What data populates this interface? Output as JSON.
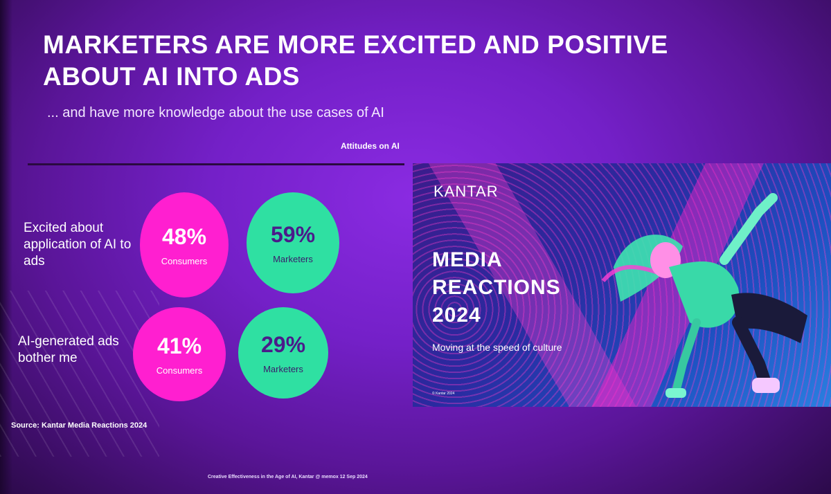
{
  "slide": {
    "title_line1": "MARKETERS ARE MORE EXCITED AND POSITIVE",
    "title_line2": "ABOUT AI INTO ADS",
    "subtitle": "... and have more knowledge about the use cases of AI",
    "section_label": "Attitudes on AI",
    "source": "Source: Kantar Media Reactions 2024",
    "footer": "Creative Effectiveness in the Age of AI, Kantar @ memox 12 Sep 2024"
  },
  "rows": [
    {
      "label": "Excited about application of AI to ads",
      "consumers": {
        "value": "48%",
        "group": "Consumers"
      },
      "marketers": {
        "value": "59%",
        "group": "Marketers"
      }
    },
    {
      "label": "AI-generated ads bother me",
      "consumers": {
        "value": "41%",
        "group": "Consumers"
      },
      "marketers": {
        "value": "29%",
        "group": "Marketers"
      }
    }
  ],
  "cover": {
    "brand": "KANTAR",
    "title_line1": "MEDIA",
    "title_line2": "REACTIONS",
    "title_line3": "2024",
    "tagline": "Moving at the speed of culture",
    "copyright": "© Kantar 2024"
  },
  "colors": {
    "background": "#7420c8",
    "consumers": "#ff1fd0",
    "marketers": "#2fe0a2"
  }
}
